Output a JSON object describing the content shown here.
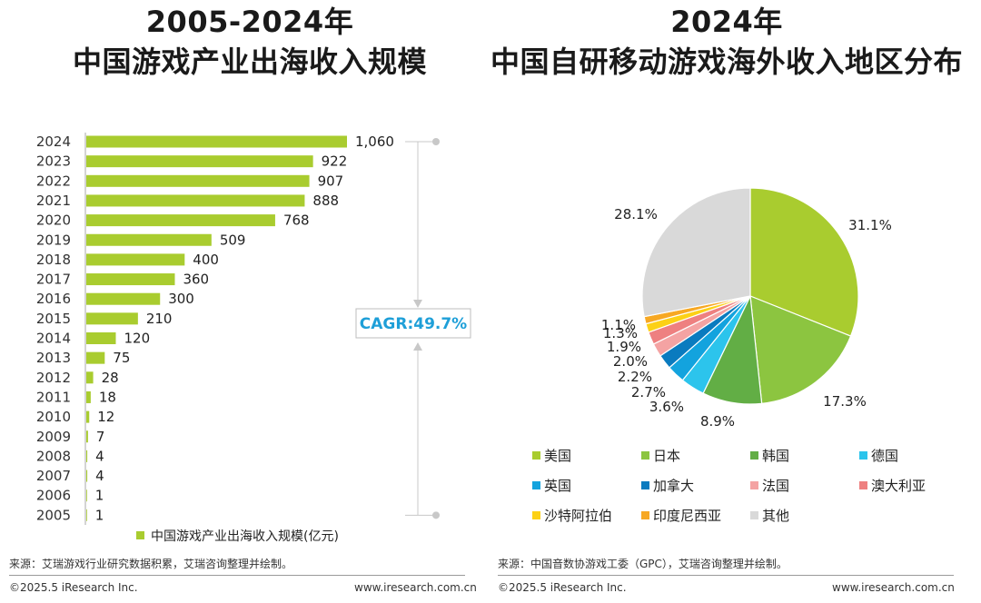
{
  "colors": {
    "green_bar": "#a9cc2f",
    "cagr_text": "#1e9fd8",
    "guide_line": "#c8c8c8"
  },
  "left_title": {
    "line1": "2005-2024年",
    "line2": "中国游戏产业出海收入规模"
  },
  "right_title": {
    "line1": "2024年",
    "line2": "中国自研移动游戏海外收入地区分布"
  },
  "cagr": "CAGR:49.7%",
  "left_source": "来源：艾瑞游戏行业研究数据积累，艾瑞咨询整理并绘制。",
  "right_source": "来源：中国音数协游戏工委（GPC），艾瑞咨询整理并绘制。",
  "footer": {
    "left_copyright": "©2025.5 iResearch Inc.",
    "left_site": "www.iresearch.com.cn",
    "right_copyright": "©2025.5 iResearch Inc.",
    "right_site": "www.iresearch.com.cn"
  },
  "chart_data": [
    {
      "type": "bar",
      "orientation": "horizontal",
      "categories": [
        "2024",
        "2023",
        "2022",
        "2021",
        "2020",
        "2019",
        "2018",
        "2017",
        "2016",
        "2015",
        "2014",
        "2013",
        "2012",
        "2011",
        "2010",
        "2009",
        "2008",
        "2007",
        "2006",
        "2005"
      ],
      "values": [
        1060,
        922,
        907,
        888,
        768,
        509,
        400,
        360,
        300,
        210,
        120,
        75,
        28,
        18,
        12,
        7,
        4,
        4,
        1,
        1
      ],
      "value_labels": [
        "1,060",
        "922",
        "907",
        "888",
        "768",
        "509",
        "400",
        "360",
        "300",
        "210",
        "120",
        "75",
        "28",
        "18",
        "12",
        "7",
        "4",
        "4",
        "1",
        "1"
      ],
      "series": [
        {
          "name": "中国游戏产业出海收入规模(亿元)",
          "color": "#a9cc2f"
        }
      ],
      "legend": "bottom",
      "annotation": "CAGR:49.7%"
    },
    {
      "type": "pie",
      "slices": [
        {
          "label": "美国",
          "value": 31.1,
          "text": "31.1%",
          "color": "#a9cc2f"
        },
        {
          "label": "日本",
          "value": 17.3,
          "text": "17.3%",
          "color": "#8cc540"
        },
        {
          "label": "韩国",
          "value": 8.9,
          "text": "8.9%",
          "color": "#62ae45"
        },
        {
          "label": "德国",
          "value": 3.6,
          "text": "3.6%",
          "color": "#2cc4ec"
        },
        {
          "label": "英国",
          "value": 2.7,
          "text": "2.7%",
          "color": "#13a3de"
        },
        {
          "label": "加拿大",
          "value": 2.2,
          "text": "2.2%",
          "color": "#0a7bbf"
        },
        {
          "label": "法国",
          "value": 2.0,
          "text": "2.0%",
          "color": "#f4a3a3"
        },
        {
          "label": "澳大利亚",
          "value": 1.9,
          "text": "1.9%",
          "color": "#ee8080"
        },
        {
          "label": "沙特阿拉伯",
          "value": 1.3,
          "text": "1.3%",
          "color": "#fcd116"
        },
        {
          "label": "印度尼西亚",
          "value": 1.1,
          "text": "1.1%",
          "color": "#f7a823"
        },
        {
          "label": "其他",
          "value": 28.1,
          "text": "28.1%",
          "color": "#d9d9d9"
        }
      ],
      "legend": "bottom"
    }
  ]
}
